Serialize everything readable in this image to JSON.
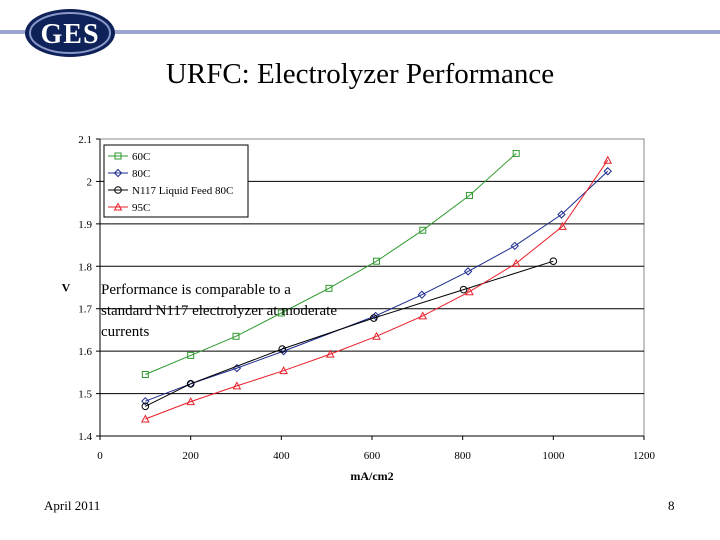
{
  "header": {
    "logo_text": "GES",
    "title": "URFC: Electrolyzer Performance"
  },
  "footer": {
    "date": "April 2011",
    "page": "8"
  },
  "colors": {
    "header_line": "#9ea6cf",
    "logo_dark": "#0e2159",
    "logo_light": "#ffffff"
  },
  "chart_data": {
    "type": "line",
    "title": "",
    "xlabel": "mA/cm2",
    "ylabel": "V",
    "xlim": [
      0,
      1200
    ],
    "ylim": [
      1.4,
      2.1
    ],
    "xticks": [
      0,
      200,
      400,
      600,
      800,
      1000,
      1200
    ],
    "yticks": [
      1.4,
      1.5,
      1.6,
      1.7,
      1.8,
      1.9,
      2,
      2.1
    ],
    "grid": "horizontal",
    "legend_position": "top-left",
    "annotation": "Performance is comparable to a standard N117 electrolyzer at moderate currents",
    "series": [
      {
        "name": "60C",
        "color": "#2e9a2e",
        "marker": "square",
        "x": [
          100,
          200,
          300,
          400,
          505,
          610,
          712,
          815,
          918
        ],
        "y": [
          1.545,
          1.59,
          1.635,
          1.69,
          1.748,
          1.812,
          1.885,
          1.967,
          2.066
        ]
      },
      {
        "name": "80C",
        "color": "#1d2b8f",
        "marker": "diamond",
        "x": [
          100,
          200,
          302,
          405,
          608,
          710,
          812,
          915,
          1018,
          1120
        ],
        "y": [
          1.482,
          1.523,
          1.56,
          1.6,
          1.683,
          1.733,
          1.788,
          1.848,
          1.922,
          2.024
        ]
      },
      {
        "name": "N117 Liquid Feed 80C",
        "color": "#000000",
        "marker": "circle",
        "x": [
          100,
          200,
          402,
          604,
          802,
          1000
        ],
        "y": [
          1.47,
          1.523,
          1.605,
          1.678,
          1.745,
          1.812
        ]
      },
      {
        "name": "95C",
        "color": "#e8202a",
        "marker": "triangle",
        "x": [
          100,
          200,
          302,
          405,
          508,
          610,
          712,
          815,
          918,
          1020,
          1120
        ],
        "y": [
          1.44,
          1.481,
          1.518,
          1.554,
          1.593,
          1.635,
          1.683,
          1.74,
          1.807,
          1.894,
          2.05
        ]
      }
    ]
  }
}
